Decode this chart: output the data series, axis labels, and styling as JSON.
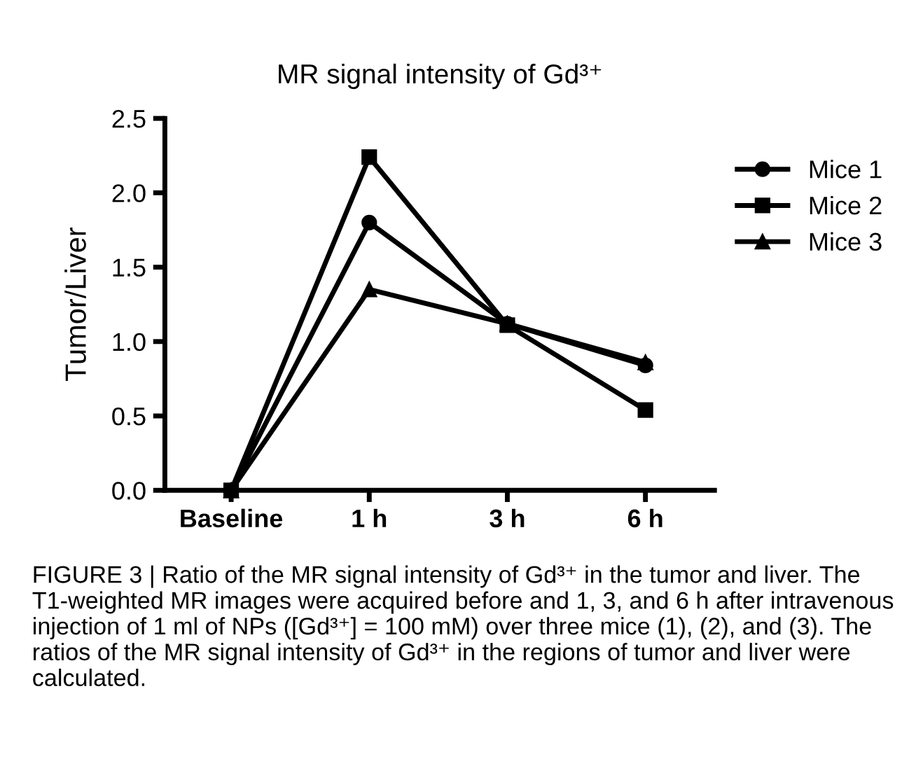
{
  "chart_data": {
    "type": "line",
    "title": "MR signal intensity of Gd³⁺",
    "ylabel": "Tumor/Liver",
    "categories": [
      "Baseline",
      "1 h",
      "3 h",
      "6 h"
    ],
    "series": [
      {
        "name": "Mice 1",
        "color": "#000000",
        "marker": "circle",
        "values": [
          0,
          1.8,
          1.12,
          0.84
        ]
      },
      {
        "name": "Mice 2",
        "color": "#000000",
        "marker": "square",
        "values": [
          0,
          2.24,
          1.11,
          0.54
        ]
      },
      {
        "name": "Mice 3",
        "color": "#000000",
        "marker": "triangle",
        "values": [
          0,
          1.35,
          1.12,
          0.86
        ]
      }
    ],
    "ylim": [
      0,
      2.5
    ],
    "yticks": [
      {
        "value": 0,
        "label": "0.0"
      },
      {
        "value": 0.5,
        "label": "0.5"
      },
      {
        "value": 1,
        "label": "1.0"
      },
      {
        "value": 1.5,
        "label": "1.5"
      },
      {
        "value": 2,
        "label": "2.0"
      },
      {
        "value": 2.5,
        "label": "2.5"
      }
    ],
    "grid": false,
    "legend": "top right",
    "line_style": "solid",
    "annotations": [
      "FIGURE 3 | Ratio of the MR signal intensity of Gd³⁺ in the tumor and liver. The T1-weighted MR images were acquired before and 1, 3, and 6 h after intravenous injection of 1 ml of NPs ([Gd³⁺] = 100 mM) over three mice (1), (2), and (3). The ratios of the MR signal intensity of Gd³⁺ in the regions of tumor and liver were calculated."
    ]
  }
}
